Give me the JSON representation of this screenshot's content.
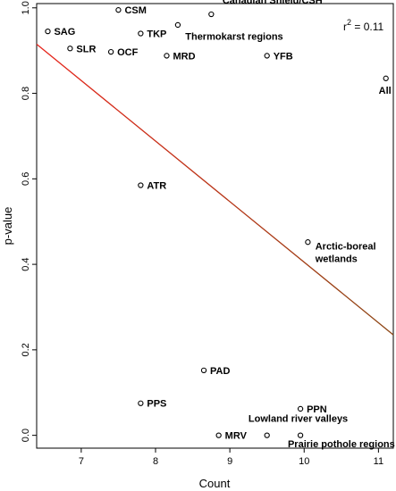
{
  "chart_data": {
    "type": "scatter",
    "xlabel": "Count",
    "ylabel": "p-value",
    "xlim": [
      6.4,
      11.2
    ],
    "ylim": [
      -0.03,
      1.01
    ],
    "x_ticks": [
      "7",
      "8",
      "9",
      "10",
      "11"
    ],
    "y_ticks": [
      "0.0",
      "0.2",
      "0.4",
      "0.6",
      "0.8",
      "1.0"
    ],
    "r2_text": "r",
    "r2_sup": "2",
    "r2_value": " = 0.11",
    "points": [
      {
        "label": "CSM",
        "x": 7.5,
        "y": 0.995
      },
      {
        "label": "",
        "x": 8.75,
        "y": 0.985
      },
      {
        "label": "",
        "x": 8.3,
        "y": 0.96
      },
      {
        "label": "SAG",
        "x": 6.55,
        "y": 0.945
      },
      {
        "label": "TKP",
        "x": 7.8,
        "y": 0.94
      },
      {
        "label": "SLR",
        "x": 6.85,
        "y": 0.905
      },
      {
        "label": "OCF",
        "x": 7.4,
        "y": 0.897
      },
      {
        "label": "MRD",
        "x": 8.15,
        "y": 0.888
      },
      {
        "label": "YFB",
        "x": 9.5,
        "y": 0.888
      },
      {
        "label": "All",
        "x": 11.1,
        "y": 0.835
      },
      {
        "label": "ATR",
        "x": 7.8,
        "y": 0.585
      },
      {
        "label": "",
        "x": 10.05,
        "y": 0.452
      },
      {
        "label": "PAD",
        "x": 8.65,
        "y": 0.152
      },
      {
        "label": "PPS",
        "x": 7.8,
        "y": 0.075
      },
      {
        "label": "PPN",
        "x": 9.95,
        "y": 0.062
      },
      {
        "label": "MRV",
        "x": 8.85,
        "y": 0.0
      },
      {
        "label": "",
        "x": 9.5,
        "y": 0.0
      },
      {
        "label": "",
        "x": 9.95,
        "y": 0.0
      }
    ],
    "group_labels": [
      {
        "text": "Canadian Shield/CSH",
        "x": 8.9,
        "y": 1.01
      },
      {
        "text": "Thermokarst  regions",
        "x": 8.4,
        "y": 0.925
      },
      {
        "text": "Arctic-boreal",
        "x": 10.15,
        "y": 0.435
      },
      {
        "text": "wetlands",
        "x": 10.15,
        "y": 0.405
      },
      {
        "text": "Lowland river valleys",
        "x": 9.25,
        "y": 0.032
      },
      {
        "text": "Prairie pothole regions",
        "x": 9.78,
        "y": -0.028
      }
    ],
    "regression": {
      "x0": 6.4,
      "y0": 0.915,
      "x1": 11.2,
      "y1": 0.235,
      "color_start": "#e8241b",
      "color_end": "#8b4513"
    }
  }
}
